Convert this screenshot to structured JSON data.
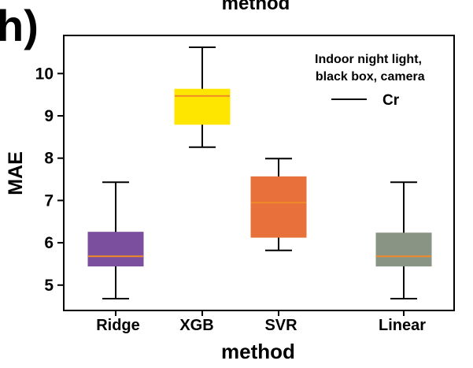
{
  "panel_label": "h)",
  "header_fragment": "method",
  "chart_data": {
    "type": "box",
    "title": "",
    "xlabel": "method",
    "ylabel": "MAE",
    "categories": [
      "Ridge",
      "XGB",
      "SVR",
      "Linear"
    ],
    "ylim": [
      4.4,
      10.9
    ],
    "yticks": [
      5,
      6,
      7,
      8,
      9,
      10
    ],
    "grid": false,
    "legend": {
      "placement": "top-right",
      "title": "Indoor night light,\n black box, camera",
      "entries": [
        {
          "label": "Cr",
          "color": "#000000"
        }
      ]
    },
    "boxes": [
      {
        "category": "Ridge",
        "whisker_low": 4.68,
        "q1": 5.45,
        "median": 5.68,
        "q3": 6.25,
        "whisker_high": 7.43,
        "color": "#7b4f9d"
      },
      {
        "category": "XGB",
        "whisker_low": 8.26,
        "q1": 8.8,
        "median": 9.47,
        "q3": 9.63,
        "whisker_high": 10.62,
        "color": "#ffe600"
      },
      {
        "category": "SVR",
        "whisker_low": 5.82,
        "q1": 6.13,
        "median": 6.95,
        "q3": 7.56,
        "whisker_high": 7.99,
        "color": "#e8703a"
      },
      {
        "category": "Linear",
        "whisker_low": 4.68,
        "q1": 5.45,
        "median": 5.68,
        "q3": 6.23,
        "whisker_high": 7.43,
        "color": "#8a9484"
      }
    ],
    "median_color": "#f08a28"
  }
}
